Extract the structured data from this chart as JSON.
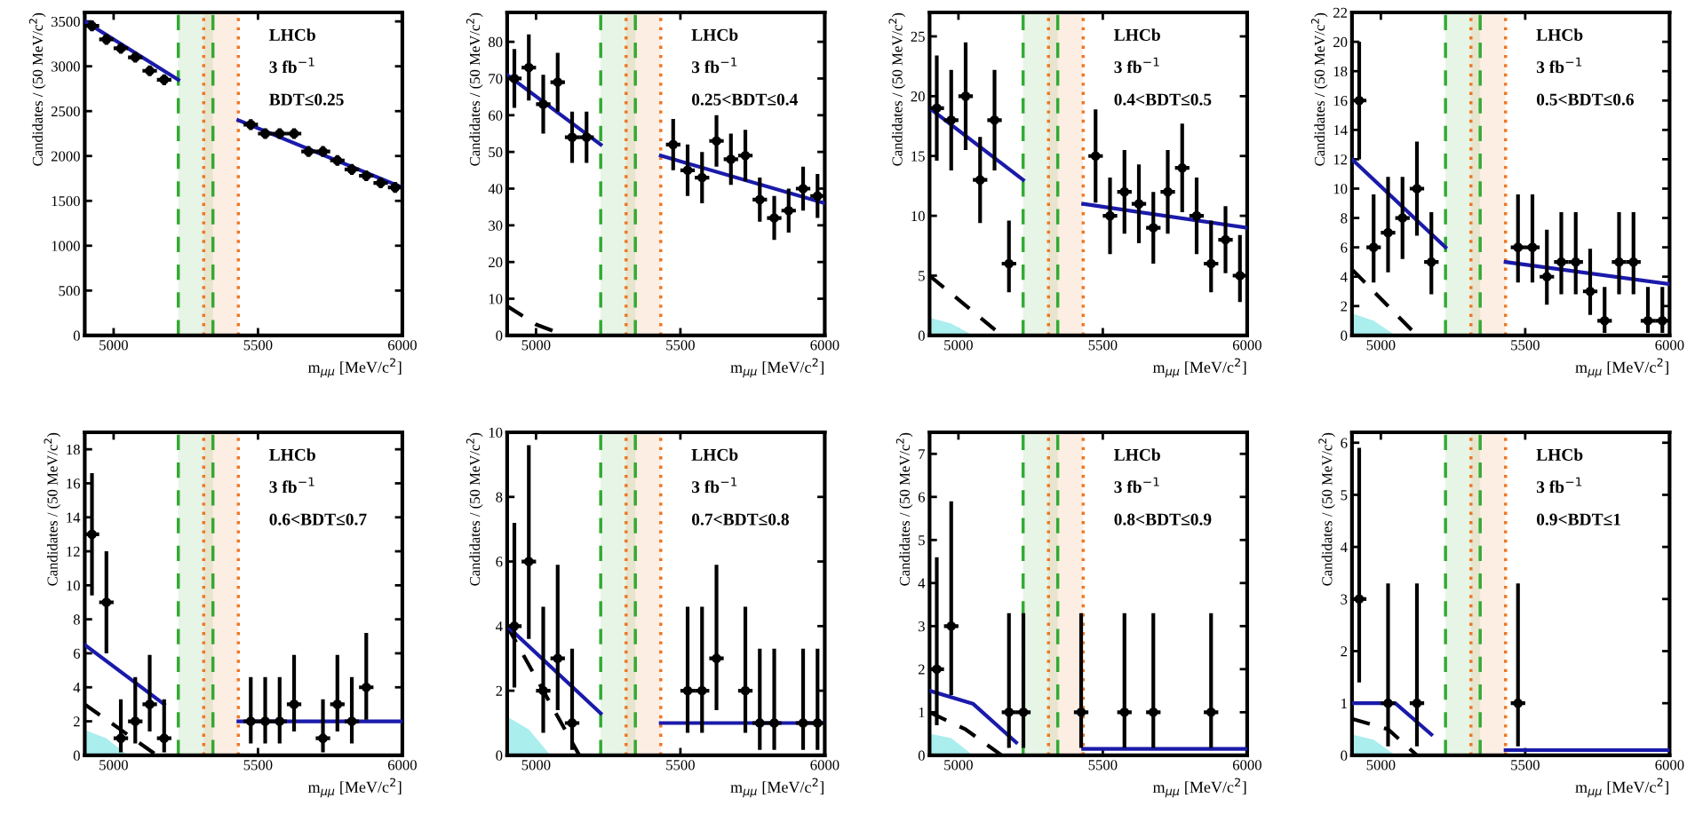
{
  "chart_data": [
    {
      "type": "scatter",
      "xlabel": "m$_{μμ}$ [MeV/c$^{2}$]",
      "ylabel": "Candidates / (50 MeV/c$^{2}$)",
      "annotations": [
        "LHCb",
        "3 fb$^{−1}$",
        "BDT≤0.25"
      ],
      "xlim": [
        4900,
        6000
      ],
      "xticks": [
        5000,
        5500,
        6000
      ],
      "ylim": [
        0,
        3600
      ],
      "yticks": [
        0,
        500,
        1000,
        1500,
        2000,
        2500,
        3000,
        3500
      ],
      "grid": false,
      "legend": false,
      "bands": [
        {
          "axis": "x",
          "from": 5224,
          "to": 5344,
          "color": "#33aa33"
        },
        {
          "axis": "x",
          "from": 5312,
          "to": 5432,
          "color": "#ee7722"
        }
      ],
      "ref_lines": [
        {
          "axis": "x",
          "value": 5224,
          "color": "#33aa33",
          "line_style": "dashed"
        },
        {
          "axis": "x",
          "value": 5344,
          "color": "#33aa33",
          "line_style": "dashed"
        },
        {
          "axis": "x",
          "value": 5312,
          "color": "#ee7722",
          "line_style": "dotted"
        },
        {
          "axis": "x",
          "value": 5432,
          "color": "#ee7722",
          "line_style": "dotted"
        }
      ],
      "series": [
        {
          "type": "line",
          "color": "#1a1aaa",
          "x": [
            4900,
            5224
          ],
          "values": [
            3500,
            2850
          ]
        },
        {
          "type": "line",
          "color": "#1a1aaa",
          "x": [
            5432,
            6000
          ],
          "values": [
            2400,
            1650
          ]
        },
        {
          "type": "scatter",
          "color": "#000000",
          "marker": "circle",
          "x": [
            4925,
            4975,
            5025,
            5075,
            5125,
            5175,
            5475,
            5525,
            5575,
            5625,
            5675,
            5725,
            5775,
            5825,
            5875,
            5925,
            5975
          ],
          "values": [
            3450,
            3300,
            3200,
            3100,
            2950,
            2850,
            2350,
            2250,
            2250,
            2250,
            2050,
            2050,
            1950,
            1850,
            1780,
            1700,
            1650
          ],
          "errors": [
            60,
            60,
            60,
            60,
            60,
            60,
            60,
            60,
            60,
            60,
            60,
            60,
            60,
            60,
            60,
            60,
            60
          ],
          "xerrors": [
            25,
            25,
            25,
            25,
            25,
            25,
            25,
            25,
            25,
            25,
            25,
            25,
            25,
            25,
            25,
            25,
            25
          ]
        }
      ]
    },
    {
      "type": "scatter",
      "xlabel": "m$_{μμ}$ [MeV/c$^{2}$]",
      "ylabel": "Candidates / (50 MeV/c$^{2}$)",
      "annotations": [
        "LHCb",
        "3 fb$^{−1}$",
        "0.25<BDT≤0.4"
      ],
      "xlim": [
        4900,
        6000
      ],
      "xticks": [
        5000,
        5500,
        6000
      ],
      "ylim": [
        0,
        88
      ],
      "yticks": [
        0,
        10,
        20,
        30,
        40,
        50,
        60,
        70,
        80
      ],
      "grid": false,
      "legend": false,
      "bands": [
        {
          "axis": "x",
          "from": 5224,
          "to": 5344,
          "color": "#33aa33"
        },
        {
          "axis": "x",
          "from": 5312,
          "to": 5432,
          "color": "#ee7722"
        }
      ],
      "ref_lines": [
        {
          "axis": "x",
          "value": 5224,
          "color": "#33aa33",
          "line_style": "dashed"
        },
        {
          "axis": "x",
          "value": 5344,
          "color": "#33aa33",
          "line_style": "dashed"
        },
        {
          "axis": "x",
          "value": 5312,
          "color": "#ee7722",
          "line_style": "dotted"
        },
        {
          "axis": "x",
          "value": 5432,
          "color": "#ee7722",
          "line_style": "dotted"
        }
      ],
      "series": [
        {
          "type": "line",
          "color": "#000000",
          "line_style": "dashed",
          "x": [
            4900,
            5000,
            5100
          ],
          "values": [
            8,
            3,
            0
          ]
        },
        {
          "type": "line",
          "color": "#1a1aaa",
          "x": [
            4900,
            5224
          ],
          "values": [
            71,
            52
          ]
        },
        {
          "type": "line",
          "color": "#1a1aaa",
          "x": [
            5432,
            6000
          ],
          "values": [
            49,
            36
          ]
        },
        {
          "type": "scatter",
          "color": "#000000",
          "marker": "circle",
          "x": [
            4925,
            4975,
            5025,
            5075,
            5125,
            5175,
            5475,
            5525,
            5575,
            5625,
            5675,
            5725,
            5775,
            5825,
            5875,
            5925,
            5975
          ],
          "values": [
            70,
            73,
            63,
            69,
            54,
            54,
            52,
            45,
            43,
            53,
            48,
            49,
            37,
            32,
            34,
            40,
            38
          ],
          "errors": [
            8,
            9,
            8,
            8,
            7,
            7,
            7,
            7,
            7,
            7,
            7,
            7,
            6,
            6,
            6,
            6,
            6
          ],
          "xerrors": [
            25,
            25,
            25,
            25,
            25,
            25,
            25,
            25,
            25,
            25,
            25,
            25,
            25,
            25,
            25,
            25,
            25
          ]
        }
      ]
    },
    {
      "type": "scatter",
      "xlabel": "m$_{μμ}$ [MeV/c$^{2}$]",
      "ylabel": "Candidates / (50 MeV/c$^{2}$)",
      "annotations": [
        "LHCb",
        "3 fb$^{−1}$",
        "0.4<BDT≤0.5"
      ],
      "xlim": [
        4900,
        6000
      ],
      "xticks": [
        5000,
        5500,
        6000
      ],
      "ylim": [
        0,
        27
      ],
      "yticks": [
        0,
        5,
        10,
        15,
        20,
        25
      ],
      "grid": false,
      "legend": false,
      "bands": [
        {
          "axis": "x",
          "from": 5224,
          "to": 5344,
          "color": "#33aa33"
        },
        {
          "axis": "x",
          "from": 5312,
          "to": 5432,
          "color": "#ee7722"
        }
      ],
      "ref_lines": [
        {
          "axis": "x",
          "value": 5224,
          "color": "#33aa33",
          "line_style": "dashed"
        },
        {
          "axis": "x",
          "value": 5344,
          "color": "#33aa33",
          "line_style": "dashed"
        },
        {
          "axis": "x",
          "value": 5312,
          "color": "#ee7722",
          "line_style": "dotted"
        },
        {
          "axis": "x",
          "value": 5432,
          "color": "#ee7722",
          "line_style": "dotted"
        }
      ],
      "series": [
        {
          "type": "area",
          "color": "#aaeeee",
          "x": [
            4900,
            4975,
            5050
          ],
          "values": [
            1.5,
            1,
            0
          ]
        },
        {
          "type": "line",
          "color": "#000000",
          "line_style": "dashed",
          "x": [
            4900,
            5025,
            5150
          ],
          "values": [
            5,
            2.5,
            0
          ]
        },
        {
          "type": "line",
          "color": "#1a1aaa",
          "x": [
            4900,
            5224
          ],
          "values": [
            19,
            13
          ]
        },
        {
          "type": "line",
          "color": "#1a1aaa",
          "x": [
            5432,
            6000
          ],
          "values": [
            11,
            9
          ]
        },
        {
          "type": "scatter",
          "color": "#000000",
          "marker": "circle",
          "x": [
            4925,
            4975,
            5025,
            5075,
            5125,
            5175,
            5475,
            5525,
            5575,
            5625,
            5675,
            5725,
            5775,
            5825,
            5875,
            5925,
            5975
          ],
          "values": [
            19,
            18,
            20,
            13,
            18,
            6,
            15,
            10,
            12,
            11,
            9,
            12,
            14,
            10,
            6,
            8,
            5
          ],
          "errors": [
            4.4,
            4.2,
            4.5,
            3.6,
            4.2,
            [
              3.6,
              9.6
            ],
            3.9,
            3.2,
            3.5,
            3.3,
            3,
            3.5,
            3.7,
            3.2,
            [
              3.6,
              9.6
            ],
            2.8,
            [
              2.8,
              8.4
            ]
          ],
          "xerrors": [
            25,
            25,
            25,
            25,
            25,
            25,
            25,
            25,
            25,
            25,
            25,
            25,
            25,
            25,
            25,
            25,
            25
          ]
        }
      ]
    },
    {
      "type": "scatter",
      "xlabel": "m$_{μμ}$ [MeV/c$^{2}$]",
      "ylabel": "Candidates / (50 MeV/c$^{2}$)",
      "annotations": [
        "LHCb",
        "3 fb$^{−1}$",
        "0.5<BDT≤0.6"
      ],
      "xlim": [
        4900,
        6000
      ],
      "xticks": [
        5000,
        5500,
        6000
      ],
      "ylim": [
        0,
        22
      ],
      "yticks": [
        0,
        2,
        4,
        6,
        8,
        10,
        12,
        14,
        16,
        18,
        20,
        22
      ],
      "grid": false,
      "legend": false,
      "bands": [
        {
          "axis": "x",
          "from": 5224,
          "to": 5344,
          "color": "#33aa33"
        },
        {
          "axis": "x",
          "from": 5312,
          "to": 5432,
          "color": "#ee7722"
        }
      ],
      "ref_lines": [
        {
          "axis": "x",
          "value": 5224,
          "color": "#33aa33",
          "line_style": "dashed"
        },
        {
          "axis": "x",
          "value": 5344,
          "color": "#33aa33",
          "line_style": "dashed"
        },
        {
          "axis": "x",
          "value": 5312,
          "color": "#ee7722",
          "line_style": "dotted"
        },
        {
          "axis": "x",
          "value": 5432,
          "color": "#ee7722",
          "line_style": "dotted"
        }
      ],
      "series": [
        {
          "type": "area",
          "color": "#aaeeee",
          "x": [
            4900,
            4975,
            5050
          ],
          "values": [
            1.5,
            1,
            0
          ]
        },
        {
          "type": "line",
          "color": "#000000",
          "line_style": "dashed",
          "x": [
            4900,
            5000,
            5125
          ],
          "values": [
            4.5,
            2.5,
            0
          ]
        },
        {
          "type": "line",
          "color": "#1a1aaa",
          "x": [
            4900,
            5224
          ],
          "values": [
            12,
            6
          ]
        },
        {
          "type": "line",
          "color": "#1a1aaa",
          "x": [
            5432,
            6000
          ],
          "values": [
            5,
            3.5
          ]
        },
        {
          "type": "scatter",
          "color": "#000000",
          "marker": "circle",
          "x": [
            4925,
            4975,
            5025,
            5075,
            5125,
            5175,
            5475,
            5525,
            5575,
            5625,
            5675,
            5725,
            5775,
            5825,
            5875,
            5925,
            5975
          ],
          "values": [
            16,
            6,
            7,
            8,
            10,
            5,
            6,
            6,
            4,
            5,
            5,
            3,
            1,
            5,
            5,
            1,
            1
          ],
          "errors": [
            4,
            [
              3.6,
              9.6
            ],
            [
              4.3,
              10.8
            ],
            2.8,
            3.2,
            [
              2.8,
              8.4
            ],
            [
              3.6,
              9.6
            ],
            [
              3.6,
              9.6
            ],
            [
              2.1,
              7.2
            ],
            [
              2.8,
              8.4
            ],
            [
              2.8,
              8.4
            ],
            [
              1.4,
              5.9
            ],
            [
              0.17,
              3.3
            ],
            [
              2.8,
              8.4
            ],
            [
              2.8,
              8.4
            ],
            [
              0.17,
              3.3
            ],
            [
              0.17,
              3.3
            ]
          ],
          "xerrors": [
            25,
            25,
            25,
            25,
            25,
            25,
            25,
            25,
            25,
            25,
            25,
            25,
            25,
            25,
            25,
            25,
            25
          ]
        }
      ]
    },
    {
      "type": "scatter",
      "xlabel": "m$_{μμ}$ [MeV/c$^{2}$]",
      "ylabel": "Candidates / (50 MeV/c$^{2}$)",
      "annotations": [
        "LHCb",
        "3 fb$^{−1}$",
        "0.6<BDT≤0.7"
      ],
      "xlim": [
        4900,
        6000
      ],
      "xticks": [
        5000,
        5500,
        6000
      ],
      "ylim": [
        0,
        19
      ],
      "yticks": [
        0,
        2,
        4,
        6,
        8,
        10,
        12,
        14,
        16,
        18
      ],
      "grid": false,
      "legend": false,
      "bands": [
        {
          "axis": "x",
          "from": 5224,
          "to": 5344,
          "color": "#33aa33"
        },
        {
          "axis": "x",
          "from": 5312,
          "to": 5432,
          "color": "#ee7722"
        }
      ],
      "ref_lines": [
        {
          "axis": "x",
          "value": 5224,
          "color": "#33aa33",
          "line_style": "dashed"
        },
        {
          "axis": "x",
          "value": 5344,
          "color": "#33aa33",
          "line_style": "dashed"
        },
        {
          "axis": "x",
          "value": 5312,
          "color": "#ee7722",
          "line_style": "dotted"
        },
        {
          "axis": "x",
          "value": 5432,
          "color": "#ee7722",
          "line_style": "dotted"
        }
      ],
      "series": [
        {
          "type": "area",
          "color": "#aaeeee",
          "x": [
            4900,
            4975,
            5050
          ],
          "values": [
            1.5,
            1,
            0
          ]
        },
        {
          "type": "line",
          "color": "#000000",
          "line_style": "dashed",
          "x": [
            4900,
            5025,
            5150
          ],
          "values": [
            3,
            1.5,
            0
          ]
        },
        {
          "type": "line",
          "color": "#1a1aaa",
          "x": [
            4900,
            5175
          ],
          "values": [
            6.5,
            3
          ]
        },
        {
          "type": "line",
          "color": "#1a1aaa",
          "x": [
            5432,
            6000
          ],
          "values": [
            2,
            2
          ]
        },
        {
          "type": "scatter",
          "color": "#000000",
          "marker": "circle",
          "x": [
            4925,
            4975,
            5025,
            5075,
            5125,
            5175,
            5475,
            5525,
            5575,
            5625,
            5725,
            5775,
            5825,
            5875
          ],
          "values": [
            13,
            9,
            1,
            2,
            3,
            1,
            2,
            2,
            2,
            3,
            1,
            3,
            2,
            4
          ],
          "errors": [
            3.6,
            3,
            [
              0.17,
              3.3
            ],
            [
              0.7,
              4.6
            ],
            [
              1.4,
              5.9
            ],
            [
              0.17,
              3.3
            ],
            [
              0.7,
              4.6
            ],
            [
              0.7,
              4.6
            ],
            [
              0.7,
              4.6
            ],
            [
              1.4,
              5.9
            ],
            [
              0.17,
              3.3
            ],
            [
              1.4,
              5.9
            ],
            [
              0.7,
              4.6
            ],
            [
              2.1,
              7.2
            ]
          ],
          "xerrors": [
            25,
            25,
            25,
            25,
            25,
            25,
            25,
            25,
            25,
            25,
            25,
            25,
            25,
            25
          ]
        }
      ]
    },
    {
      "type": "scatter",
      "xlabel": "m$_{μμ}$ [MeV/c$^{2}$]",
      "ylabel": "Candidates / (50 MeV/c$^{2}$)",
      "annotations": [
        "LHCb",
        "3 fb$^{−1}$",
        "0.7<BDT≤0.8"
      ],
      "xlim": [
        4900,
        6000
      ],
      "xticks": [
        5000,
        5500,
        6000
      ],
      "ylim": [
        0,
        10
      ],
      "yticks": [
        0,
        2,
        4,
        6,
        8,
        10
      ],
      "grid": false,
      "legend": false,
      "bands": [
        {
          "axis": "x",
          "from": 5224,
          "to": 5344,
          "color": "#33aa33"
        },
        {
          "axis": "x",
          "from": 5312,
          "to": 5432,
          "color": "#ee7722"
        }
      ],
      "ref_lines": [
        {
          "axis": "x",
          "value": 5224,
          "color": "#33aa33",
          "line_style": "dashed"
        },
        {
          "axis": "x",
          "value": 5344,
          "color": "#33aa33",
          "line_style": "dashed"
        },
        {
          "axis": "x",
          "value": 5312,
          "color": "#ee7722",
          "line_style": "dotted"
        },
        {
          "axis": "x",
          "value": 5432,
          "color": "#ee7722",
          "line_style": "dotted"
        }
      ],
      "series": [
        {
          "type": "area",
          "color": "#aaeeee",
          "x": [
            4900,
            4975,
            5050
          ],
          "values": [
            1.2,
            0.8,
            0
          ]
        },
        {
          "type": "line",
          "color": "#000000",
          "line_style": "dashed",
          "x": [
            4900,
            5025,
            5150
          ],
          "values": [
            4,
            2,
            0
          ]
        },
        {
          "type": "line",
          "color": "#1a1aaa",
          "x": [
            4900,
            5224
          ],
          "values": [
            4,
            1.3
          ]
        },
        {
          "type": "line",
          "color": "#1a1aaa",
          "x": [
            5432,
            6000
          ],
          "values": [
            1,
            1
          ]
        },
        {
          "type": "scatter",
          "color": "#000000",
          "marker": "circle",
          "x": [
            4925,
            4975,
            5025,
            5075,
            5125,
            5525,
            5575,
            5625,
            5725,
            5775,
            5825,
            5925,
            5975
          ],
          "values": [
            4,
            6,
            2,
            3,
            1,
            2,
            2,
            3,
            2,
            1,
            1,
            1,
            1
          ],
          "errors": [
            [
              2.1,
              7.2
            ],
            [
              3.6,
              9.6
            ],
            [
              0.7,
              4.6
            ],
            [
              1.4,
              5.9
            ],
            [
              0.17,
              3.3
            ],
            [
              0.7,
              4.6
            ],
            [
              0.7,
              4.6
            ],
            [
              1.4,
              5.9
            ],
            [
              0.7,
              4.6
            ],
            [
              0.17,
              3.3
            ],
            [
              0.17,
              3.3
            ],
            [
              0.17,
              3.3
            ],
            [
              0.17,
              3.3
            ]
          ],
          "xerrors": [
            25,
            25,
            25,
            25,
            25,
            25,
            25,
            25,
            25,
            25,
            25,
            25,
            25
          ]
        }
      ]
    },
    {
      "type": "scatter",
      "xlabel": "m$_{μμ}$ [MeV/c$^{2}$]",
      "ylabel": "Candidates / (50 MeV/c$^{2}$)",
      "annotations": [
        "LHCb",
        "3 fb$^{−1}$",
        "0.8<BDT≤0.9"
      ],
      "xlim": [
        4900,
        6000
      ],
      "xticks": [
        5000,
        5500,
        6000
      ],
      "ylim": [
        0,
        7.5
      ],
      "yticks": [
        0,
        1,
        2,
        3,
        4,
        5,
        6,
        7
      ],
      "grid": false,
      "legend": false,
      "bands": [
        {
          "axis": "x",
          "from": 5224,
          "to": 5344,
          "color": "#33aa33"
        },
        {
          "axis": "x",
          "from": 5312,
          "to": 5432,
          "color": "#ee7722"
        }
      ],
      "ref_lines": [
        {
          "axis": "x",
          "value": 5224,
          "color": "#33aa33",
          "line_style": "dashed"
        },
        {
          "axis": "x",
          "value": 5344,
          "color": "#33aa33",
          "line_style": "dashed"
        },
        {
          "axis": "x",
          "value": 5312,
          "color": "#ee7722",
          "line_style": "dotted"
        },
        {
          "axis": "x",
          "value": 5432,
          "color": "#ee7722",
          "line_style": "dotted"
        }
      ],
      "series": [
        {
          "type": "area",
          "color": "#aaeeee",
          "x": [
            4900,
            4975,
            5050
          ],
          "values": [
            0.5,
            0.4,
            0
          ]
        },
        {
          "type": "line",
          "color": "#000000",
          "line_style": "dashed",
          "x": [
            4900,
            5025,
            5150
          ],
          "values": [
            1,
            0.6,
            0
          ]
        },
        {
          "type": "line",
          "color": "#1a1aaa",
          "x": [
            4900,
            5050,
            5200
          ],
          "values": [
            1.5,
            1.2,
            0.3
          ]
        },
        {
          "type": "line",
          "color": "#1a1aaa",
          "x": [
            5432,
            6000
          ],
          "values": [
            0.15,
            0.15
          ]
        },
        {
          "type": "scatter",
          "color": "#000000",
          "marker": "circle",
          "x": [
            4925,
            4975,
            5175,
            5225,
            5425,
            5575,
            5675,
            5875
          ],
          "values": [
            2,
            3,
            1,
            1,
            1,
            1,
            1,
            1
          ],
          "errors": [
            [
              0.7,
              4.6
            ],
            [
              1.4,
              5.9
            ],
            [
              0.17,
              3.3
            ],
            [
              0.17,
              3.3
            ],
            [
              0.17,
              3.3
            ],
            [
              0.17,
              3.3
            ],
            [
              0.17,
              3.3
            ],
            [
              0.17,
              3.3
            ]
          ],
          "xerrors": [
            25,
            25,
            25,
            25,
            25,
            25,
            25,
            25
          ]
        }
      ]
    },
    {
      "type": "scatter",
      "xlabel": "m$_{μμ}$ [MeV/c$^{2}$]",
      "ylabel": "Candidates / (50 MeV/c$^{2}$)",
      "annotations": [
        "LHCb",
        "3 fb$^{−1}$",
        "0.9<BDT≤1"
      ],
      "xlim": [
        4900,
        6000
      ],
      "xticks": [
        5000,
        5500,
        6000
      ],
      "ylim": [
        0,
        6.2
      ],
      "yticks": [
        0,
        1,
        2,
        3,
        4,
        5,
        6
      ],
      "grid": false,
      "legend": false,
      "bands": [
        {
          "axis": "x",
          "from": 5224,
          "to": 5344,
          "color": "#33aa33"
        },
        {
          "axis": "x",
          "from": 5312,
          "to": 5432,
          "color": "#ee7722"
        }
      ],
      "ref_lines": [
        {
          "axis": "x",
          "value": 5224,
          "color": "#33aa33",
          "line_style": "dashed"
        },
        {
          "axis": "x",
          "value": 5344,
          "color": "#33aa33",
          "line_style": "dashed"
        },
        {
          "axis": "x",
          "value": 5312,
          "color": "#ee7722",
          "line_style": "dotted"
        },
        {
          "axis": "x",
          "value": 5432,
          "color": "#ee7722",
          "line_style": "dotted"
        }
      ],
      "series": [
        {
          "type": "area",
          "color": "#aaeeee",
          "x": [
            4900,
            4975,
            5050
          ],
          "values": [
            0.4,
            0.3,
            0
          ]
        },
        {
          "type": "line",
          "color": "#000000",
          "line_style": "dashed",
          "x": [
            4900,
            5025,
            5125
          ],
          "values": [
            0.7,
            0.5,
            0
          ]
        },
        {
          "type": "line",
          "color": "#1a1aaa",
          "x": [
            4900,
            5050,
            5175
          ],
          "values": [
            1,
            1,
            0.4
          ]
        },
        {
          "type": "line",
          "color": "#1a1aaa",
          "x": [
            5432,
            6000
          ],
          "values": [
            0.1,
            0.1
          ]
        },
        {
          "type": "scatter",
          "color": "#000000",
          "marker": "circle",
          "x": [
            4925,
            5025,
            5125,
            5475
          ],
          "values": [
            3,
            1,
            1,
            1
          ],
          "errors": [
            [
              1.4,
              5.9
            ],
            [
              0.17,
              3.3
            ],
            [
              0.17,
              3.3
            ],
            [
              0.17,
              3.3
            ]
          ],
          "xerrors": [
            25,
            25,
            25,
            25
          ]
        }
      ]
    }
  ]
}
